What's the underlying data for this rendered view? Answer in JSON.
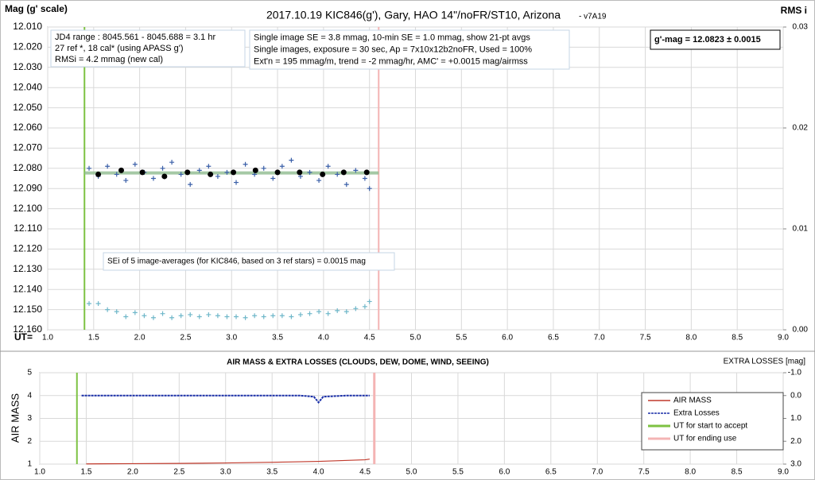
{
  "chart_data": [
    {
      "type": "scatter",
      "title": "2017.10.19  KIC846(g'), Gary, HAO 14\"/noFR/ST10, Arizona",
      "subtitle": "- v7A19",
      "y_label": "Mag (g' scale)",
      "y2_label": "RMS i",
      "x_label": "UT=",
      "xlim": [
        1.0,
        9.0
      ],
      "xticks": [
        {
          "value": 1,
          "label": "1.0"
        },
        1.5,
        {
          "value": 2,
          "label": "2.0"
        },
        2.5,
        {
          "value": 3,
          "label": "3.0"
        },
        3.5,
        {
          "value": 4,
          "label": "4.0"
        },
        4.5,
        {
          "value": 5,
          "label": "5.0"
        },
        5.5,
        {
          "value": 6,
          "label": "6.0"
        },
        6.5,
        {
          "value": 7,
          "label": "7.0"
        },
        7.5,
        {
          "value": 8,
          "label": "8.0"
        },
        8.5,
        {
          "value": 9,
          "label": "9.0"
        }
      ],
      "ylim": [
        12.16,
        12.01
      ],
      "yticks": [
        {
          "value": 12.01,
          "label": "12.010"
        },
        {
          "value": 12.02,
          "label": "12.020"
        },
        {
          "value": 12.03,
          "label": "12.030"
        },
        {
          "value": 12.04,
          "label": "12.040"
        },
        {
          "value": 12.05,
          "label": "12.050"
        },
        {
          "value": 12.06,
          "label": "12.060"
        },
        {
          "value": 12.07,
          "label": "12.070"
        },
        {
          "value": 12.08,
          "label": "12.080"
        },
        {
          "value": 12.09,
          "label": "12.090"
        },
        {
          "value": 12.1,
          "label": "12.100"
        },
        {
          "value": 12.11,
          "label": "12.110"
        },
        {
          "value": 12.12,
          "label": "12.120"
        },
        {
          "value": 12.13,
          "label": "12.130"
        },
        {
          "value": 12.14,
          "label": "12.140"
        },
        {
          "value": 12.15,
          "label": "12.150"
        },
        {
          "value": 12.16,
          "label": "12.160"
        }
      ],
      "y2lim": [
        0,
        0.03
      ],
      "y2ticks": [
        {
          "value": 0,
          "label": "0.00"
        },
        0.01,
        0.02,
        0.03
      ],
      "grid": true,
      "vlines": [
        {
          "x": 1.4,
          "color": "#7dc242"
        },
        {
          "x": 4.6,
          "color": "#f4b4b4"
        }
      ],
      "fit": {
        "value": 12.0823,
        "x": [
          1.4,
          4.6
        ],
        "color": "#8fbc8f"
      },
      "series": [
        {
          "marker": "plus",
          "color": "#3a5fa8",
          "x": [
            1.45,
            1.55,
            1.65,
            1.75,
            1.85,
            1.95,
            2.05,
            2.15,
            2.25,
            2.35,
            2.45,
            2.55,
            2.65,
            2.75,
            2.85,
            2.95,
            3.05,
            3.15,
            3.25,
            3.35,
            3.45,
            3.55,
            3.65,
            3.75,
            3.85,
            3.95,
            4.05,
            4.15,
            4.25,
            4.35,
            4.45,
            4.5
          ],
          "values": [
            12.08,
            12.084,
            12.079,
            12.083,
            12.086,
            12.078,
            12.082,
            12.085,
            12.08,
            12.077,
            12.083,
            12.088,
            12.081,
            12.079,
            12.084,
            12.082,
            12.087,
            12.078,
            12.083,
            12.08,
            12.085,
            12.079,
            12.076,
            12.084,
            12.082,
            12.086,
            12.079,
            12.083,
            12.088,
            12.081,
            12.085,
            12.09
          ]
        },
        {
          "marker": "dot",
          "color": "#000000",
          "x": [
            1.55,
            1.8,
            2.03,
            2.27,
            2.52,
            2.77,
            3.02,
            3.26,
            3.5,
            3.74,
            3.99,
            4.22,
            4.47
          ],
          "values": [
            12.083,
            12.081,
            12.082,
            12.084,
            12.082,
            12.083,
            12.082,
            12.081,
            12.082,
            12.082,
            12.083,
            12.082,
            12.082
          ]
        },
        {
          "marker": "plus",
          "color": "#6fb7c9",
          "axis": "y2",
          "x": [
            1.45,
            1.55,
            1.65,
            1.75,
            1.85,
            1.95,
            2.05,
            2.15,
            2.25,
            2.35,
            2.45,
            2.55,
            2.65,
            2.75,
            2.85,
            2.95,
            3.05,
            3.15,
            3.25,
            3.35,
            3.45,
            3.55,
            3.65,
            3.75,
            3.85,
            3.95,
            4.05,
            4.15,
            4.25,
            4.35,
            4.45,
            4.5
          ],
          "values": [
            0.0026,
            0.0026,
            0.002,
            0.0018,
            0.0013,
            0.0017,
            0.0014,
            0.0012,
            0.0016,
            0.0012,
            0.0014,
            0.0015,
            0.0013,
            0.0015,
            0.0014,
            0.0013,
            0.0013,
            0.0012,
            0.0014,
            0.0013,
            0.0014,
            0.0014,
            0.0013,
            0.0015,
            0.0016,
            0.0018,
            0.0016,
            0.0019,
            0.0018,
            0.0021,
            0.0023,
            0.0028
          ]
        }
      ],
      "annotations": [
        {
          "lines": [
            "JD4 range : 8045.561 - 8045.688 =  3.1  hr",
            "27 ref *, 18 cal* (using APASS g')",
            "RMSi = 4.2 mmag (new cal)"
          ]
        },
        {
          "lines": [
            "Single image SE = 3.8 mmag, 10-min SE = 1.0 mmag, show 21-pt avgs",
            "Single images, exposure = 30 sec, Ap = 7x10x12b2noFR, Used = 100%",
            "Ext'n = 195 mmag/m, trend = -2 mmag/hr, AMC' = +0.0015 mag/airmss"
          ]
        },
        {
          "lines": [
            "g'-mag = 12.0823 ± 0.0015"
          ]
        },
        {
          "lines": [
            "SEi of 5 image-averages (for KIC846, based on 3 ref stars) = 0.0015 mag"
          ]
        }
      ]
    },
    {
      "type": "line",
      "title": "AIR MASS & EXTRA LOSSES (CLOUDS, DEW, DOME, WIND, SEEING)",
      "y_label": "AIR MASS",
      "y2_label": "EXTRA LOSSES [mag]",
      "xlim": [
        1.0,
        9.0
      ],
      "xticks": [
        {
          "value": 1,
          "label": "1.0"
        },
        1.5,
        {
          "value": 2,
          "label": "2.0"
        },
        2.5,
        {
          "value": 3,
          "label": "3.0"
        },
        3.5,
        {
          "value": 4,
          "label": "4.0"
        },
        4.5,
        {
          "value": 5,
          "label": "5.0"
        },
        5.5,
        {
          "value": 6,
          "label": "6.0"
        },
        6.5,
        {
          "value": 7,
          "label": "7.0"
        },
        7.5,
        {
          "value": 8,
          "label": "8.0"
        },
        8.5,
        {
          "value": 9,
          "label": "9.0"
        }
      ],
      "ylim": [
        1,
        5
      ],
      "yticks": [
        1,
        2,
        3,
        4,
        5
      ],
      "y2lim": [
        3,
        -1
      ],
      "y2ticks": [
        {
          "value": -1,
          "label": "-1.0"
        },
        {
          "value": 0,
          "label": "0.0"
        },
        {
          "value": 1,
          "label": "1.0"
        },
        {
          "value": 2,
          "label": "2.0"
        },
        {
          "value": 3,
          "label": "3.0"
        }
      ],
      "grid": true,
      "legend": "right",
      "series": [
        {
          "name": "AIR MASS",
          "color": "#c0392b",
          "x": [
            1.5,
            2,
            2.5,
            3,
            3.5,
            4,
            4.5,
            4.55
          ],
          "values": [
            1.01,
            1.02,
            1.03,
            1.05,
            1.08,
            1.12,
            1.19,
            1.22
          ]
        },
        {
          "name": "Extra Losses",
          "color": "#1a2fa8",
          "axis": "y2",
          "dashed": true,
          "x": [
            1.45,
            1.7,
            2.0,
            2.3,
            2.6,
            2.9,
            3.2,
            3.5,
            3.8,
            3.95,
            4.0,
            4.05,
            4.3,
            4.55
          ],
          "values": [
            0,
            0,
            0,
            0,
            0,
            0,
            0,
            0,
            0,
            0.05,
            0.3,
            0.05,
            0,
            0
          ]
        }
      ],
      "markers": [
        {
          "name": "UT for start to accept",
          "x": 1.4,
          "color": "#7dc242"
        },
        {
          "name": "UT for ending use",
          "x": 4.6,
          "color": "#f4b4b4"
        }
      ]
    }
  ]
}
